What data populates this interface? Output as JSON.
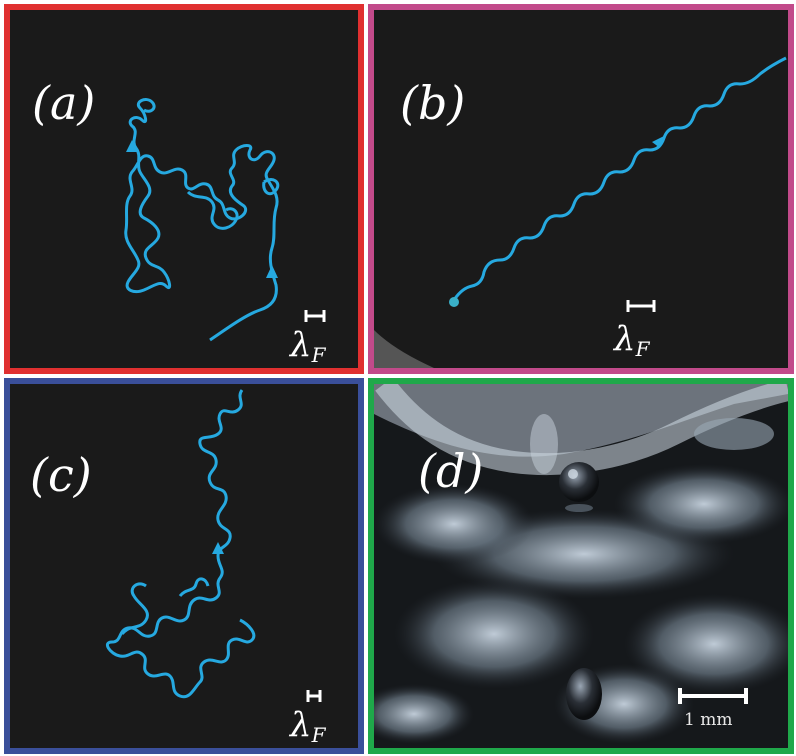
{
  "panels": [
    {
      "id": "a",
      "label": "(a)",
      "scale_label": "λ",
      "scale_sub": "F",
      "border_color": "#e03030",
      "trajectory_color": "#26a9e0"
    },
    {
      "id": "b",
      "label": "(b)",
      "scale_label": "λ",
      "scale_sub": "F",
      "border_color": "#c24a8a",
      "trajectory_color": "#26a9e0"
    },
    {
      "id": "c",
      "label": "(c)",
      "scale_label": "λ",
      "scale_sub": "F",
      "border_color": "#3a4f9a",
      "trajectory_color": "#26a9e0"
    },
    {
      "id": "d",
      "label": "(d)",
      "scale_text": "1 mm",
      "border_color": "#1fa84a"
    }
  ]
}
